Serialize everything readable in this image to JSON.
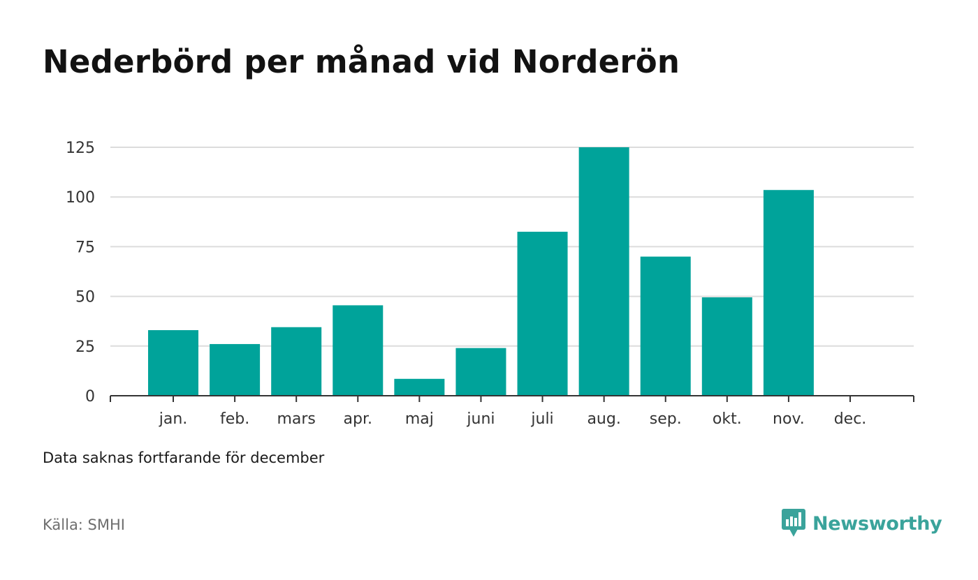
{
  "colors": {
    "bar": "#00a39a",
    "grid": "#dcdcdc",
    "axis": "#333333",
    "brand": "#3aa39b"
  },
  "chart_data": {
    "type": "bar",
    "title": "Nederbörd per månad vid Norderön",
    "categories": [
      "jan.",
      "feb.",
      "mars",
      "apr.",
      "maj",
      "juni",
      "juli",
      "aug.",
      "sep.",
      "okt.",
      "nov.",
      "dec."
    ],
    "values": [
      33,
      26,
      34.5,
      45.5,
      8.5,
      24,
      82.5,
      125,
      70,
      49.5,
      103.5,
      null
    ],
    "yticks": [
      0,
      25,
      50,
      75,
      100,
      125
    ],
    "ylim": [
      0,
      125
    ],
    "grid": true,
    "xlabel": "",
    "ylabel": ""
  },
  "note": "Data saknas fortfarande för december",
  "source": "Källa: SMHI",
  "logo": {
    "text": "Newsworthy",
    "icon": "bar-chart-speech-bubble-icon"
  }
}
